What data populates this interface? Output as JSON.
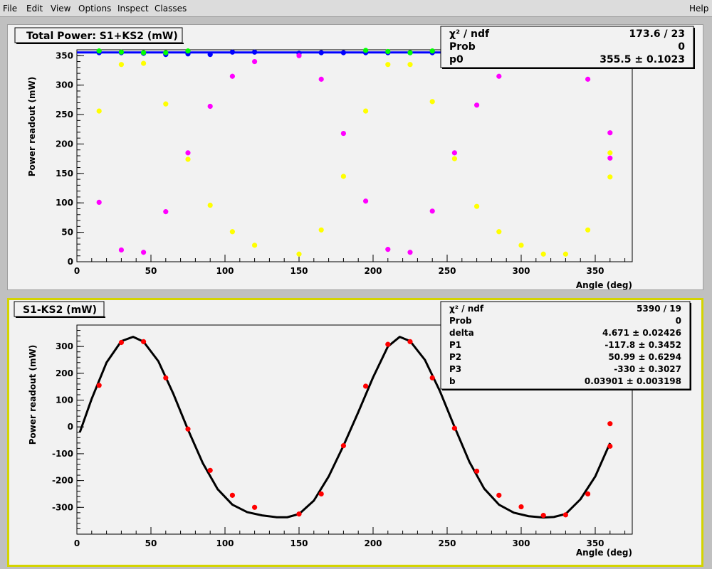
{
  "menu": {
    "file": "File",
    "edit": "Edit",
    "view": "View",
    "options": "Options",
    "inspect": "Inspect",
    "classes": "Classes",
    "help": "Help"
  },
  "colors": {
    "blue": "#0000ff",
    "green": "#00ff00",
    "yellow": "#ffff00",
    "magenta": "#ff00ff",
    "red": "#ff0000",
    "fit": "#000000",
    "highlight_border": "#d4d400"
  },
  "chart_data": [
    {
      "type": "scatter",
      "title": "Total Power: S1+KS2 (mW)",
      "xlabel": "Angle (deg)",
      "ylabel": "Power readout (mW)",
      "xlim": [
        0,
        375
      ],
      "ylim": [
        0,
        360
      ],
      "xticks": [
        0,
        50,
        100,
        150,
        200,
        250,
        300,
        350
      ],
      "yticks": [
        0,
        50,
        100,
        150,
        200,
        250,
        300,
        350
      ],
      "grid": false,
      "stats": [
        {
          "label": "χ² / ndf",
          "value": "173.6 / 23"
        },
        {
          "label": "Prob",
          "value": "0"
        },
        {
          "label": "p0",
          "value": "355.5 ± 0.1023"
        }
      ],
      "fit": {
        "type": "constant",
        "p0": 355.5,
        "color": "#0000ff"
      },
      "series": [
        {
          "color": "#0000ff",
          "x": [
            15,
            30,
            45,
            60,
            75,
            90,
            105,
            120,
            150,
            165,
            180,
            195,
            210,
            225,
            240,
            255,
            270
          ],
          "y": [
            355,
            355,
            354,
            352,
            353,
            352,
            356,
            356,
            354,
            355,
            355,
            355,
            355,
            355,
            355,
            355,
            355
          ]
        },
        {
          "color": "#00ff00",
          "x": [
            15,
            30,
            45,
            60,
            75,
            195,
            210,
            225,
            240,
            255,
            270
          ],
          "y": [
            358,
            356,
            355,
            355,
            358,
            359,
            357,
            355,
            358,
            360,
            360
          ]
        },
        {
          "color": "#ffff00",
          "x": [
            15,
            30,
            45,
            60,
            75,
            90,
            105,
            120,
            150,
            165,
            180,
            195,
            210,
            225,
            240,
            255,
            270,
            285,
            300,
            315,
            330,
            345,
            360,
            360
          ],
          "y": [
            256,
            335,
            337,
            268,
            174,
            96,
            51,
            28,
            13,
            54,
            145,
            256,
            335,
            335,
            272,
            175,
            94,
            51,
            28,
            13,
            13,
            54,
            185,
            144
          ]
        },
        {
          "color": "#ff00ff",
          "x": [
            15,
            30,
            45,
            60,
            75,
            90,
            105,
            120,
            150,
            165,
            180,
            195,
            210,
            225,
            240,
            255,
            270,
            285,
            300,
            315,
            330,
            345,
            360,
            360
          ],
          "y": [
            101,
            20,
            16,
            85,
            185,
            264,
            315,
            340,
            350,
            310,
            218,
            103,
            21,
            16,
            86,
            185,
            266,
            315,
            337,
            354,
            353,
            310,
            219,
            176
          ]
        }
      ]
    },
    {
      "type": "scatter",
      "title": "S1-KS2 (mW)",
      "xlabel": "Angle (deg)",
      "ylabel": "Power readout (mW)",
      "xlim": [
        0,
        375
      ],
      "ylim": [
        -400,
        380
      ],
      "xticks": [
        0,
        50,
        100,
        150,
        200,
        250,
        300,
        350
      ],
      "yticks": [
        -300,
        -200,
        -100,
        0,
        100,
        200,
        300
      ],
      "grid": false,
      "stats": [
        {
          "label": "χ² / ndf",
          "value": "5390 / 19"
        },
        {
          "label": "Prob",
          "value": "0"
        },
        {
          "label": "delta",
          "value": "4.671 ± 0.02426"
        },
        {
          "label": "P1",
          "value": "-117.8 ± 0.3452"
        },
        {
          "label": "P2",
          "value": "50.99 ± 0.6294"
        },
        {
          "label": "P3",
          "value": "-330 ± 0.3027"
        },
        {
          "label": "b",
          "value": "0.03901 ± 0.003198"
        }
      ],
      "series": [
        {
          "color": "#ff0000",
          "x": [
            15,
            30,
            45,
            60,
            75,
            90,
            105,
            120,
            150,
            165,
            180,
            195,
            210,
            225,
            240,
            255,
            270,
            285,
            300,
            315,
            330,
            345,
            360,
            360
          ],
          "y": [
            155,
            315,
            318,
            183,
            -8,
            -162,
            -255,
            -300,
            -325,
            -250,
            -70,
            152,
            308,
            318,
            183,
            -5,
            -165,
            -255,
            -298,
            -330,
            -328,
            -250,
            12,
            -72
          ]
        }
      ],
      "fit": {
        "color": "#000000",
        "x": [
          2,
          10,
          20,
          30,
          38,
          45,
          55,
          65,
          75,
          85,
          95,
          105,
          115,
          125,
          135,
          142,
          150,
          160,
          170,
          180,
          190,
          200,
          210,
          218,
          225,
          235,
          245,
          255,
          265,
          275,
          285,
          295,
          305,
          315,
          322,
          330,
          340,
          350,
          360
        ],
        "y": [
          -20,
          105,
          240,
          320,
          336,
          318,
          245,
          125,
          -10,
          -135,
          -232,
          -290,
          -318,
          -330,
          -337,
          -337,
          -325,
          -275,
          -185,
          -70,
          55,
          185,
          300,
          336,
          320,
          250,
          135,
          0,
          -130,
          -230,
          -290,
          -320,
          -333,
          -338,
          -336,
          -325,
          -270,
          -185,
          -60
        ]
      }
    }
  ]
}
